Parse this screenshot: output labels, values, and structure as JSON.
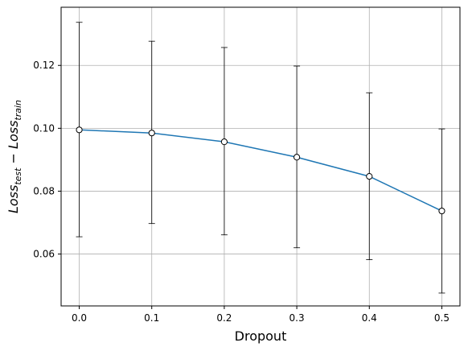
{
  "chart_data": {
    "type": "line",
    "xlabel": "Dropout",
    "ylabel": {
      "parts": [
        {
          "text": "Loss",
          "style": "main"
        },
        {
          "text": "test",
          "style": "sub"
        },
        {
          "text": " − ",
          "style": "op"
        },
        {
          "text": "Loss",
          "style": "main"
        },
        {
          "text": "train",
          "style": "sub"
        }
      ]
    },
    "x": [
      0.0,
      0.1,
      0.2,
      0.3,
      0.4,
      0.5
    ],
    "series": [
      {
        "values": [
          0.0995,
          0.0985,
          0.0957,
          0.0908,
          0.0847,
          0.0737
        ],
        "error_low": [
          0.0655,
          0.0697,
          0.0661,
          0.062,
          0.0582,
          0.0476
        ],
        "error_high": [
          0.1337,
          0.1277,
          0.1257,
          0.1198,
          0.1113,
          0.0998
        ],
        "color": "#1f77b4"
      }
    ],
    "xlim": [
      -0.025,
      0.525
    ],
    "ylim": [
      0.0435,
      0.1385
    ],
    "xticks": [
      0.0,
      0.1,
      0.2,
      0.3,
      0.4,
      0.5
    ],
    "xtick_labels": [
      "0.0",
      "0.1",
      "0.2",
      "0.3",
      "0.4",
      "0.5"
    ],
    "yticks": [
      0.06,
      0.08,
      0.1,
      0.12
    ],
    "ytick_labels": [
      "0.06",
      "0.08",
      "0.10",
      "0.12"
    ],
    "grid": true,
    "marker": "open-circle"
  }
}
